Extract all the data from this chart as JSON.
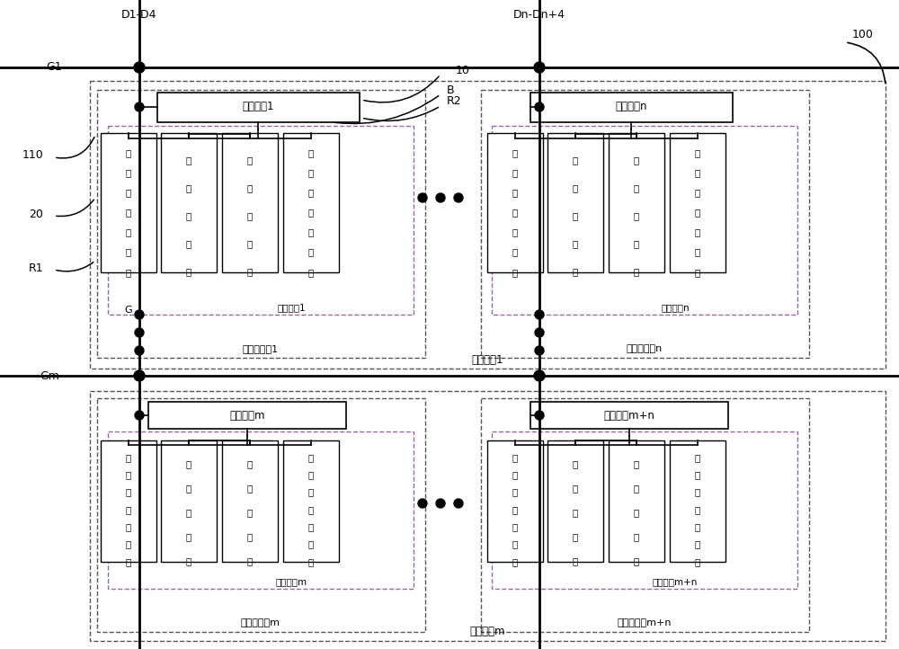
{
  "bg_color": "#ffffff",
  "fig_width": 10.0,
  "fig_height": 7.22,
  "dpi": 100,
  "labels": {
    "D1_D4": "D1-D4",
    "Dn_Dn4": "Dn-Dn+4",
    "G1": "G1",
    "Gm": "Gm",
    "num_10": "10",
    "num_20": "20",
    "num_100": "100",
    "num_110": "110",
    "R1": "R1",
    "R2": "R2",
    "B": "B",
    "G": "G",
    "drive1": "驱动电路1",
    "driven": "驱动电路n",
    "drivem": "驱动电路m",
    "drivemn": "驱动电路m+n",
    "sub_group1": "子像素组1",
    "sub_groupn": "子像素组n",
    "sub_groupm": "子像素组m",
    "sub_groupmn": "子像素组m+n",
    "sub_unit1": "子像素单兰1",
    "sub_unitn": "子像素单元n",
    "sub_unitm": "子像素单元m",
    "sub_unitmn": "子像素单元m+n",
    "pixel_unit1": "像素单兰1",
    "pixel_unitm": "像素单元m",
    "red1_lines": [
      "第",
      "一",
      "红",
      "色",
      "子",
      "像",
      "素"
    ],
    "green_lines": [
      "绿",
      "色",
      "子",
      "像",
      "素"
    ],
    "blue_lines": [
      "蓝",
      "色",
      "子",
      "像",
      "素"
    ],
    "red2_lines": [
      "第",
      "二",
      "红",
      "色",
      "子",
      "像",
      "素"
    ]
  }
}
